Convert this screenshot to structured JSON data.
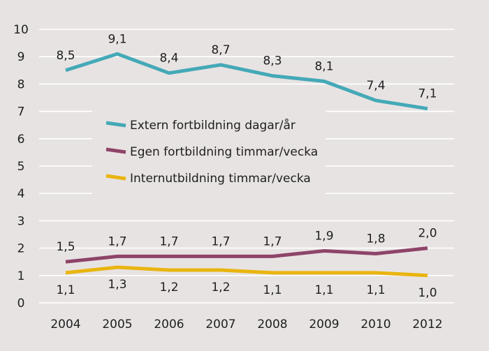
{
  "chart_data": {
    "type": "line",
    "title": "",
    "xlabel": "",
    "ylabel": "",
    "categories": [
      "2004",
      "2005",
      "2006",
      "2007",
      "2008",
      "2009",
      "2010",
      "2012"
    ],
    "ylim": [
      0,
      10
    ],
    "yticks": [
      0,
      1,
      2,
      3,
      4,
      5,
      6,
      7,
      8,
      9,
      10
    ],
    "ytick_labels": [
      "0",
      "1",
      "2",
      "3",
      "4",
      "5",
      "6",
      "7",
      "8",
      "9",
      "10"
    ],
    "grid": true,
    "legend_position": "center-left",
    "series": [
      {
        "name": "Extern fortbildning dagar/år",
        "color": "#44a9b7",
        "values": [
          8.5,
          9.1,
          8.4,
          8.7,
          8.3,
          8.1,
          7.4,
          7.1
        ],
        "labels": [
          "8,5",
          "9,1",
          "8,4",
          "8,7",
          "8,3",
          "8,1",
          "7,4",
          "7,1"
        ],
        "label_position": "above"
      },
      {
        "name": "Egen fortbildning timmar/vecka",
        "color": "#8e4468",
        "values": [
          1.5,
          1.7,
          1.7,
          1.7,
          1.7,
          1.9,
          1.8,
          2.0
        ],
        "labels": [
          "1,5",
          "1,7",
          "1,7",
          "1,7",
          "1,7",
          "1,9",
          "1,8",
          "2,0"
        ],
        "label_position": "above"
      },
      {
        "name": "Internutbildning timmar/vecka",
        "color": "#e9b50f",
        "values": [
          1.1,
          1.3,
          1.2,
          1.2,
          1.1,
          1.1,
          1.1,
          1.0
        ],
        "labels": [
          "1,1",
          "1,3",
          "1,2",
          "1,2",
          "1,1",
          "1,1",
          "1,1",
          "1,0"
        ],
        "label_position": "below"
      }
    ]
  }
}
